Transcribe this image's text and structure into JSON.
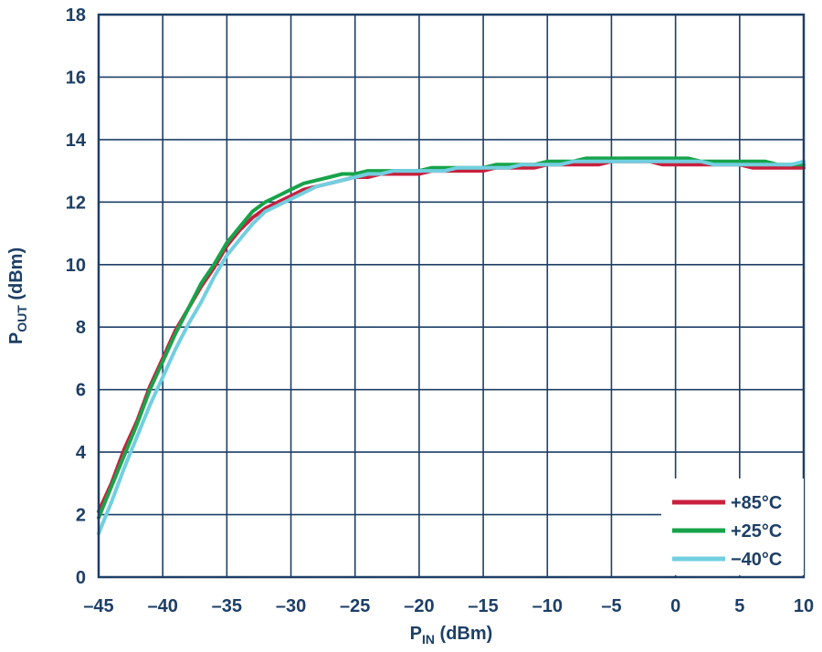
{
  "chart_data": {
    "type": "line",
    "xlabel": {
      "main": "P",
      "sub": "IN",
      "unit": " (dBm)"
    },
    "ylabel": {
      "main": "P",
      "sub": "OUT",
      "unit": " (dBm)"
    },
    "xlim": [
      -45,
      10
    ],
    "ylim": [
      0,
      18
    ],
    "x_ticks": [
      -45,
      -40,
      -35,
      -30,
      -25,
      -20,
      -15,
      -10,
      -5,
      0,
      5,
      10
    ],
    "x_tick_labels": [
      "–45",
      "–40",
      "–35",
      "–30",
      "–25",
      "–20",
      "–15",
      "–10",
      "–5",
      "0",
      "5",
      "10"
    ],
    "y_ticks": [
      0,
      2,
      4,
      6,
      8,
      10,
      12,
      14,
      16,
      18
    ],
    "y_tick_labels": [
      "0",
      "2",
      "4",
      "6",
      "8",
      "10",
      "12",
      "14",
      "16",
      "18"
    ],
    "grid": true,
    "legend_position": "bottom-right",
    "colors": {
      "axis": "#1d3f66",
      "grid": "#1d3f66",
      "text": "#1d3f66"
    },
    "series": [
      {
        "name": "+85°C",
        "color": "#c8203e",
        "x": [
          -45,
          -44,
          -43,
          -42,
          -41,
          -40,
          -39,
          -38,
          -37,
          -36,
          -35,
          -34,
          -33,
          -32,
          -31,
          -30,
          -29,
          -28,
          -27,
          -26,
          -25,
          -24,
          -23,
          -22,
          -21,
          -20,
          -19,
          -18,
          -17,
          -16,
          -15,
          -14,
          -13,
          -12,
          -11,
          -10,
          -9,
          -8,
          -7,
          -6,
          -5,
          -4,
          -3,
          -2,
          -1,
          0,
          1,
          2,
          3,
          4,
          5,
          6,
          7,
          8,
          9,
          10
        ],
        "y": [
          2.1,
          3.0,
          4.1,
          5.0,
          6.1,
          7.0,
          7.9,
          8.6,
          9.3,
          9.9,
          10.6,
          11.1,
          11.5,
          11.8,
          12.0,
          12.2,
          12.4,
          12.5,
          12.6,
          12.7,
          12.8,
          12.8,
          12.9,
          12.9,
          12.9,
          12.9,
          13.0,
          13.0,
          13.0,
          13.0,
          13.0,
          13.1,
          13.1,
          13.1,
          13.1,
          13.2,
          13.2,
          13.2,
          13.2,
          13.2,
          13.3,
          13.3,
          13.3,
          13.3,
          13.2,
          13.2,
          13.2,
          13.2,
          13.2,
          13.2,
          13.2,
          13.1,
          13.1,
          13.1,
          13.1,
          13.1
        ]
      },
      {
        "name": "+25°C",
        "color": "#17a34a",
        "x": [
          -45,
          -44,
          -43,
          -42,
          -41,
          -40,
          -39,
          -38,
          -37,
          -36,
          -35,
          -34,
          -33,
          -32,
          -31,
          -30,
          -29,
          -28,
          -27,
          -26,
          -25,
          -24,
          -23,
          -22,
          -21,
          -20,
          -19,
          -18,
          -17,
          -16,
          -15,
          -14,
          -13,
          -12,
          -11,
          -10,
          -9,
          -8,
          -7,
          -6,
          -5,
          -4,
          -3,
          -2,
          -1,
          0,
          1,
          2,
          3,
          4,
          5,
          6,
          7,
          8,
          9,
          10
        ],
        "y": [
          1.9,
          2.9,
          3.9,
          4.9,
          6.0,
          6.9,
          7.8,
          8.6,
          9.4,
          10.0,
          10.7,
          11.2,
          11.7,
          12.0,
          12.2,
          12.4,
          12.6,
          12.7,
          12.8,
          12.9,
          12.9,
          13.0,
          13.0,
          13.0,
          13.0,
          13.0,
          13.1,
          13.1,
          13.1,
          13.1,
          13.1,
          13.2,
          13.2,
          13.2,
          13.2,
          13.3,
          13.3,
          13.3,
          13.4,
          13.4,
          13.4,
          13.4,
          13.4,
          13.4,
          13.4,
          13.4,
          13.4,
          13.3,
          13.3,
          13.3,
          13.3,
          13.3,
          13.3,
          13.2,
          13.2,
          13.2
        ]
      },
      {
        "name": "−40°C",
        "color": "#72cfe0",
        "x": [
          -45,
          -44,
          -43,
          -42,
          -41,
          -40,
          -39,
          -38,
          -37,
          -36,
          -35,
          -34,
          -33,
          -32,
          -31,
          -30,
          -29,
          -28,
          -27,
          -26,
          -25,
          -24,
          -23,
          -22,
          -21,
          -20,
          -19,
          -18,
          -17,
          -16,
          -15,
          -14,
          -13,
          -12,
          -11,
          -10,
          -9,
          -8,
          -7,
          -6,
          -5,
          -4,
          -3,
          -2,
          -1,
          0,
          1,
          2,
          3,
          4,
          5,
          6,
          7,
          8,
          9,
          10
        ],
        "y": [
          1.4,
          2.4,
          3.5,
          4.5,
          5.5,
          6.4,
          7.3,
          8.1,
          8.8,
          9.6,
          10.3,
          10.8,
          11.3,
          11.7,
          11.9,
          12.1,
          12.3,
          12.5,
          12.6,
          12.7,
          12.8,
          12.9,
          12.9,
          13.0,
          13.0,
          13.0,
          13.0,
          13.0,
          13.1,
          13.1,
          13.1,
          13.1,
          13.1,
          13.2,
          13.2,
          13.2,
          13.2,
          13.3,
          13.3,
          13.3,
          13.3,
          13.3,
          13.3,
          13.3,
          13.3,
          13.3,
          13.3,
          13.3,
          13.2,
          13.2,
          13.2,
          13.2,
          13.2,
          13.2,
          13.2,
          13.3
        ]
      }
    ]
  }
}
